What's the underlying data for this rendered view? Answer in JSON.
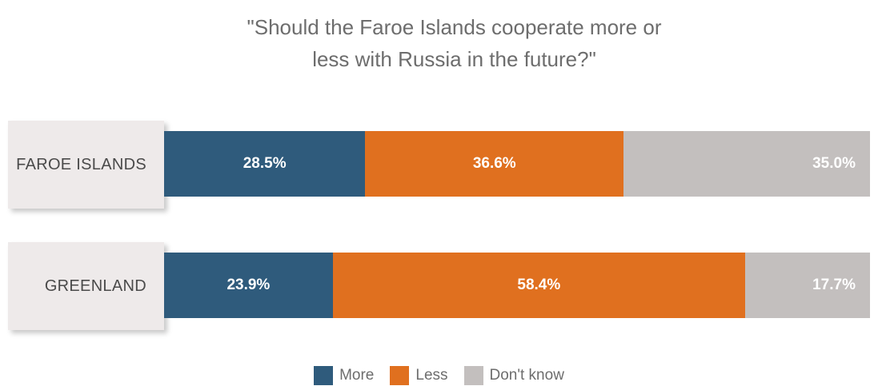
{
  "chart_data": {
    "type": "bar",
    "orientation": "horizontal",
    "stacked": true,
    "title_lines": [
      "\"Should the Faroe Islands cooperate more or",
      "less with Russia in the future?\""
    ],
    "categories": [
      "FAROE ISLANDS",
      "GREENLAND"
    ],
    "series": [
      {
        "name": "More",
        "color": "#2f5b7c",
        "values": [
          28.5,
          23.9
        ],
        "labels": [
          "28.5%",
          "23.9%"
        ]
      },
      {
        "name": "Less",
        "color": "#e0701f",
        "values": [
          36.6,
          58.4
        ],
        "labels": [
          "36.6%",
          "58.4%"
        ]
      },
      {
        "name": "Don't know",
        "color": "#c3bfbe",
        "values": [
          35.0,
          17.7
        ],
        "labels": [
          "35.0%",
          "17.7%"
        ]
      }
    ],
    "xlim": [
      0,
      100
    ],
    "legend_position": "bottom"
  }
}
